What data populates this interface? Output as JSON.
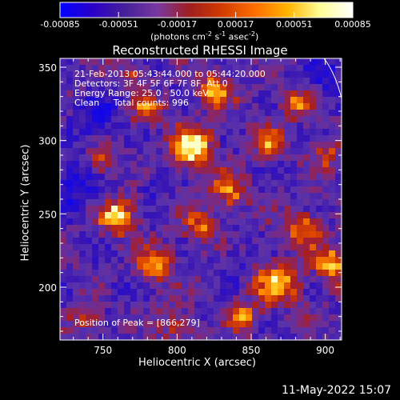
{
  "chart_data": {
    "type": "heatmap",
    "title": "Reconstructed RHESSI Image",
    "xlabel": "Heliocentric X (arcsec)",
    "ylabel": "Heliocentric Y (arcsec)",
    "xlim": [
      721,
      911
    ],
    "ylim": [
      164,
      356
    ],
    "x_ticks": [
      750,
      800,
      850,
      900
    ],
    "y_ticks": [
      200,
      250,
      300,
      350
    ],
    "colorbar": {
      "label": "(photons cm",
      "label_sup1": "-2",
      "label_mid1": " s",
      "label_sup2": "-1",
      "label_mid2": " asec",
      "label_sup3": "-2",
      "label_end": ")",
      "range": [
        -0.00085,
        0.00085
      ],
      "ticks": [
        "-0.00085",
        "-0.00051",
        "-0.00017",
        "0.00017",
        "0.00051",
        "0.00085"
      ],
      "colors": [
        "#0000ff",
        "#2a00c8",
        "#46209a",
        "#7838a0",
        "#a01e1e",
        "#d23c00",
        "#ff6e00",
        "#ffb400",
        "#ffff96",
        "#ffffff"
      ]
    },
    "annotations": {
      "time": "21-Feb-2013 05:43:44.000 to 05:44:20.000",
      "detectors": "Detectors: 3F 4F 5F 6F 7F 8F, Att 0",
      "energy": "Energy Range: 25.0 - 50.0 keV",
      "clean": "Clean     Total counts: 996",
      "peak": "Position of Peak = [866,279]"
    },
    "peak": [
      866,
      279
    ],
    "hotspots": [
      [
        810,
        295,
        1.0,
        14
      ],
      [
        760,
        248,
        0.9,
        12
      ],
      [
        868,
        202,
        0.85,
        14
      ],
      [
        905,
        215,
        0.8,
        12
      ],
      [
        885,
        240,
        0.7,
        12
      ],
      [
        825,
        335,
        0.7,
        12
      ],
      [
        780,
        320,
        0.6,
        10
      ],
      [
        835,
        265,
        0.65,
        12
      ],
      [
        785,
        215,
        0.7,
        12
      ],
      [
        750,
        285,
        0.55,
        10
      ],
      [
        860,
        300,
        0.6,
        10
      ],
      [
        880,
        325,
        0.55,
        10
      ],
      [
        740,
        180,
        0.5,
        10
      ],
      [
        800,
        175,
        0.55,
        10
      ],
      [
        845,
        180,
        0.6,
        10
      ],
      [
        900,
        290,
        0.5,
        10
      ],
      [
        770,
        345,
        0.45,
        8
      ],
      [
        815,
        240,
        0.6,
        10
      ]
    ],
    "coldspots": [
      [
        730,
        270,
        0.7,
        18
      ],
      [
        745,
        315,
        0.6,
        16
      ],
      [
        785,
        270,
        0.5,
        10
      ],
      [
        900,
        345,
        0.6,
        14
      ],
      [
        760,
        200,
        0.4,
        10
      ],
      [
        840,
        220,
        0.4,
        10
      ]
    ]
  },
  "footer": {
    "date": "11-May-2022 15:07"
  },
  "colors": {
    "background": "#000000",
    "axis": "#ffffff"
  }
}
